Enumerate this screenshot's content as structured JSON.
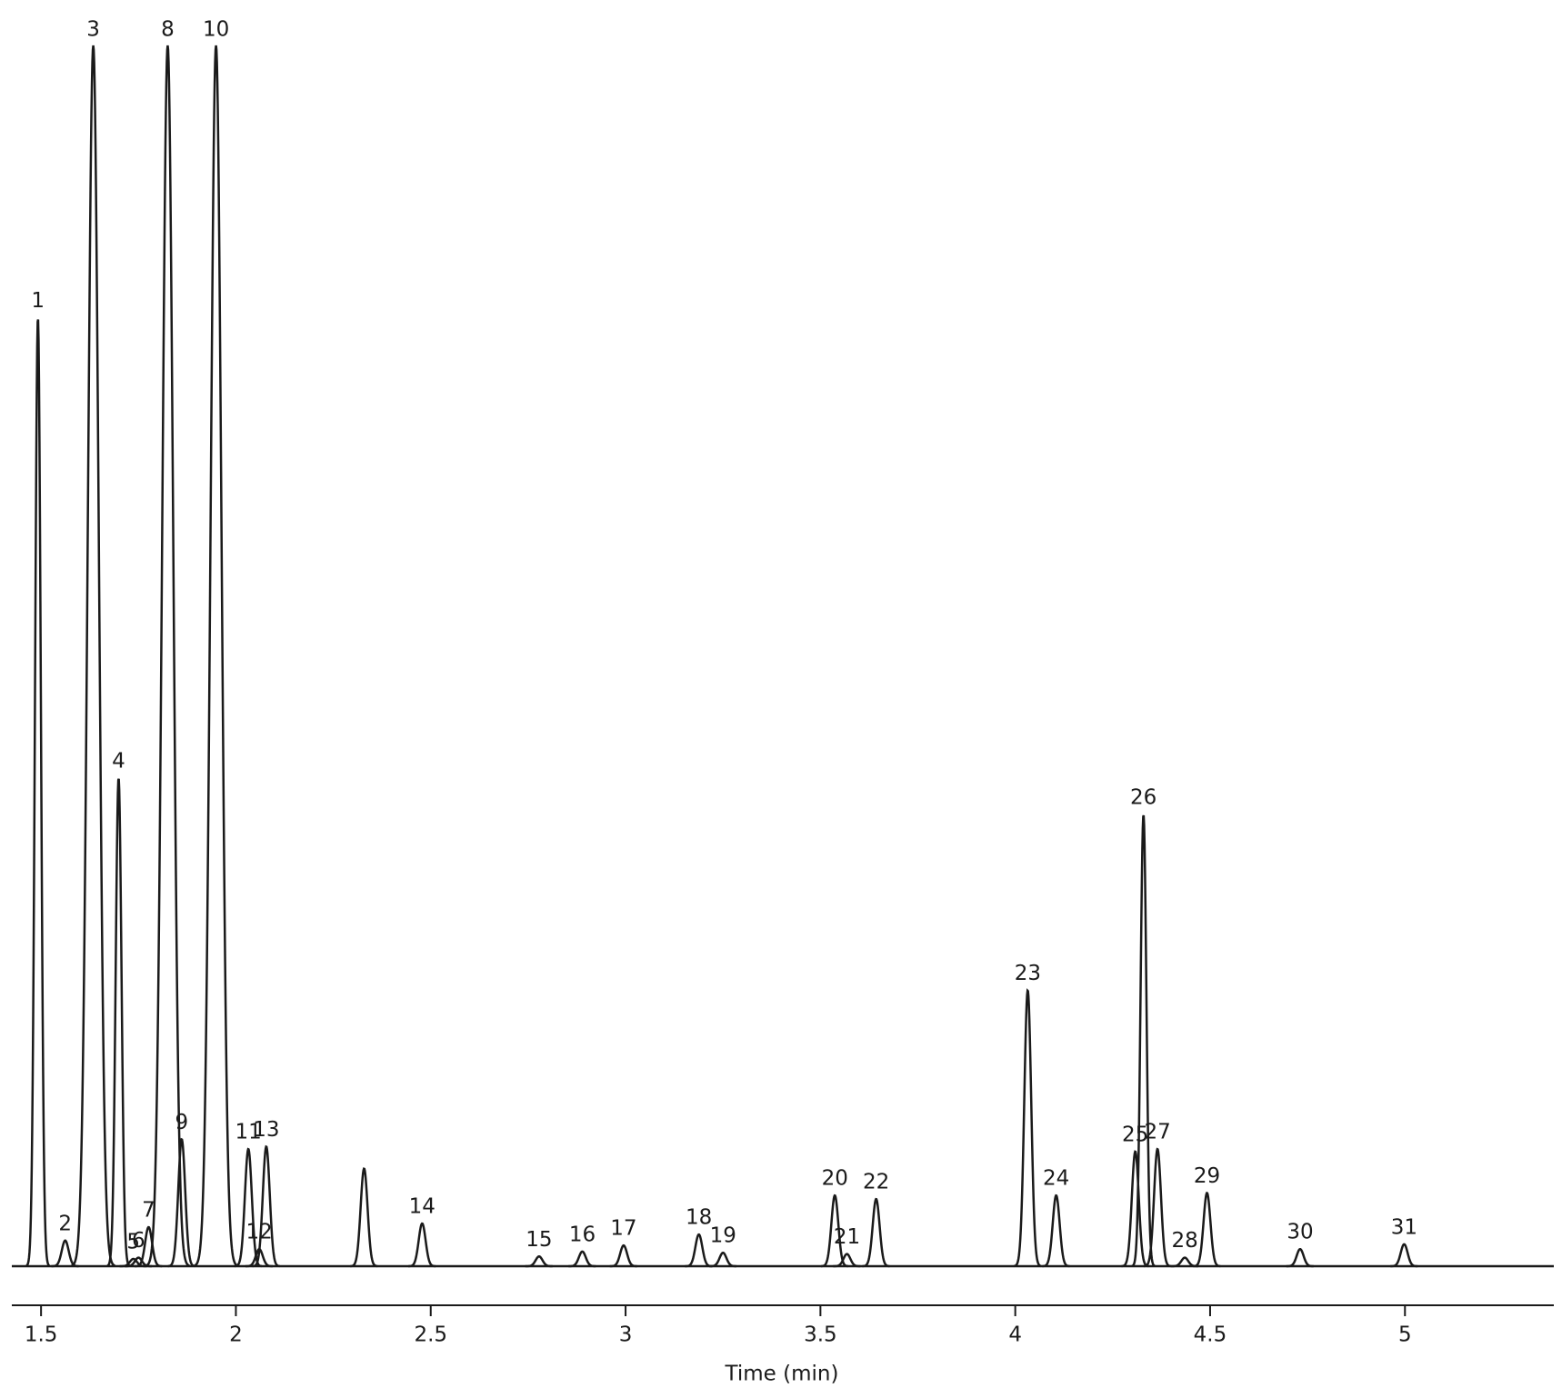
{
  "chart_data": {
    "type": "chromatogram",
    "x_label": "Time (min)",
    "xlim": [
      1.425,
      5.382
    ],
    "xticks": [
      1.5,
      2,
      2.5,
      3,
      3.5,
      4,
      4.5,
      5
    ],
    "ylim": [
      0,
      100
    ],
    "color": "#1a1a1a",
    "labels": [
      "1",
      "2",
      "3",
      "4",
      "5",
      "6",
      "7",
      "8",
      "9",
      "10",
      "11",
      "12",
      "13",
      null,
      "14",
      "15",
      "16",
      "17",
      "18",
      "19",
      "20",
      "21",
      "22",
      "23",
      "24",
      "25",
      "26",
      "27",
      "28",
      "29",
      "30",
      "31"
    ],
    "x": [
      1.492,
      1.562,
      1.634,
      1.699,
      1.737,
      1.75,
      1.776,
      1.825,
      1.861,
      1.949,
      2.032,
      2.06,
      2.078,
      2.329,
      2.478,
      2.778,
      2.889,
      2.995,
      3.188,
      3.25,
      3.537,
      3.568,
      3.643,
      4.032,
      4.105,
      4.308,
      4.329,
      4.365,
      4.435,
      4.492,
      4.731,
      4.998
    ],
    "values": [
      77.7,
      2.1,
      100,
      40.0,
      0.6,
      0.7,
      3.2,
      100,
      10.4,
      100,
      9.6,
      1.4,
      9.8,
      8.0,
      3.5,
      0.8,
      1.2,
      1.7,
      2.6,
      1.1,
      5.8,
      1.0,
      5.5,
      22.6,
      5.8,
      9.4,
      37.0,
      9.6,
      0.7,
      6.0,
      1.4,
      1.8
    ]
  }
}
